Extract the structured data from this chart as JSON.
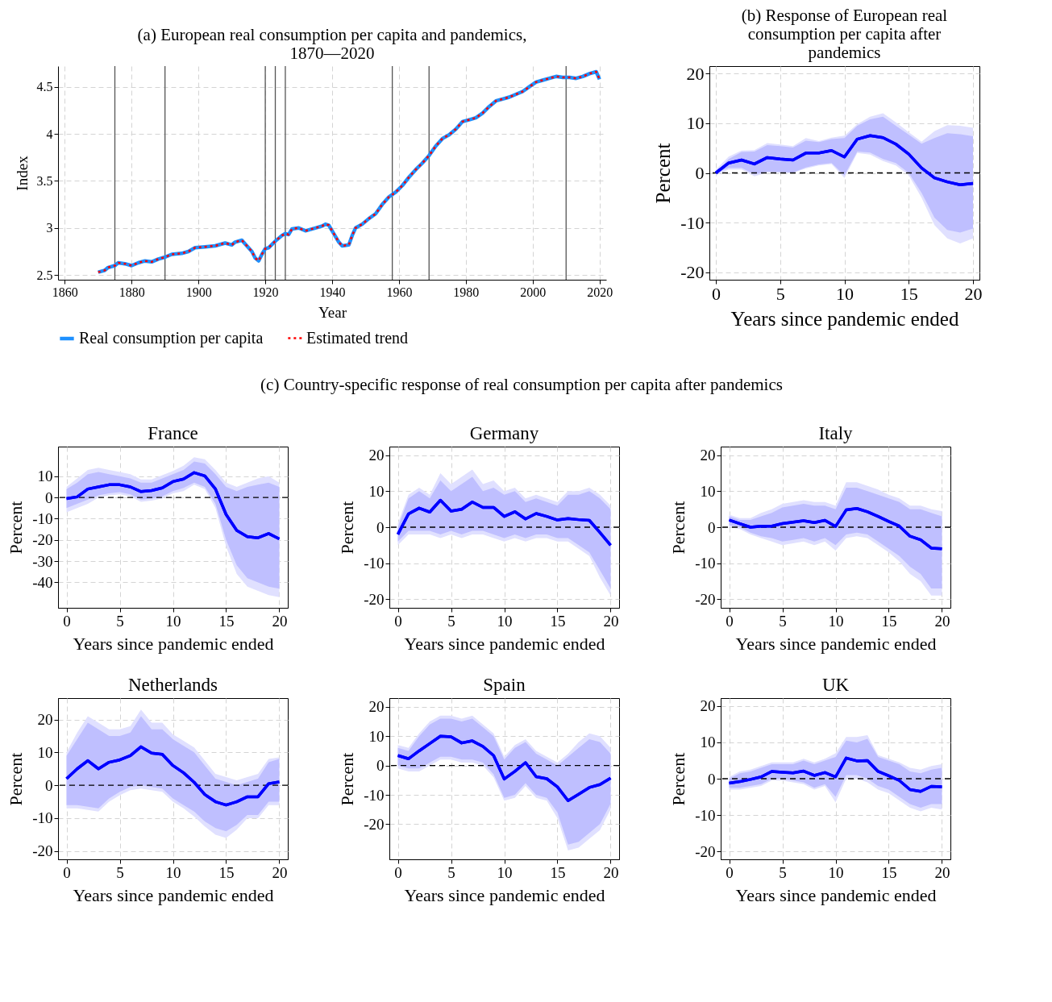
{
  "chart_data": [
    {
      "type": "line",
      "title": "(a) European real consumption per capita and pandemics, 1870—2020",
      "xlabel": "Year",
      "ylabel": "Index",
      "xlim": [
        1858,
        2022
      ],
      "xticks": [
        1860,
        1880,
        1900,
        1920,
        1940,
        1960,
        1980,
        2000,
        2020
      ],
      "ylim": [
        2.45,
        4.72
      ],
      "yticks": [
        2.5,
        3,
        3.5,
        4,
        4.5
      ],
      "grid": true,
      "legend": "bottom",
      "x": [
        1870,
        1872,
        1873,
        1875,
        1876,
        1878,
        1880,
        1882,
        1884,
        1886,
        1888,
        1890,
        1892,
        1895,
        1897,
        1899,
        1902,
        1905,
        1908,
        1910,
        1911,
        1913,
        1914,
        1916,
        1917,
        1918,
        1919,
        1920,
        1921,
        1923,
        1925,
        1926,
        1927,
        1928,
        1930,
        1932,
        1935,
        1937,
        1938,
        1939,
        1940,
        1942,
        1943,
        1945,
        1946,
        1947,
        1949,
        1951,
        1953,
        1955,
        1957,
        1959,
        1961,
        1963,
        1965,
        1967,
        1969,
        1971,
        1973,
        1975,
        1977,
        1979,
        1981,
        1983,
        1985,
        1987,
        1989,
        1991,
        1993,
        1995,
        1997,
        1999,
        2001,
        2003,
        2005,
        2007,
        2009,
        2011,
        2013,
        2015,
        2017,
        2019,
        2020
      ],
      "ref_lines": [
        {
          "axis": "x",
          "value": 1875,
          "color": "#555555"
        },
        {
          "axis": "x",
          "value": 1890,
          "color": "#555555"
        },
        {
          "axis": "x",
          "value": 1920,
          "color": "#555555"
        },
        {
          "axis": "x",
          "value": 1923,
          "color": "#555555"
        },
        {
          "axis": "x",
          "value": 1926,
          "color": "#555555"
        },
        {
          "axis": "x",
          "value": 1958,
          "color": "#555555"
        },
        {
          "axis": "x",
          "value": 1969,
          "color": "#555555"
        },
        {
          "axis": "x",
          "value": 2010,
          "color": "#555555"
        }
      ],
      "series": [
        {
          "name": "Real consumption per capita",
          "color": "#1e90ff",
          "line_style": "solid",
          "values": [
            2.53,
            2.55,
            2.58,
            2.6,
            2.63,
            2.62,
            2.6,
            2.63,
            2.65,
            2.64,
            2.67,
            2.69,
            2.72,
            2.73,
            2.75,
            2.79,
            2.8,
            2.81,
            2.84,
            2.82,
            2.85,
            2.87,
            2.83,
            2.75,
            2.68,
            2.65,
            2.72,
            2.78,
            2.79,
            2.86,
            2.92,
            2.94,
            2.93,
            2.99,
            3.0,
            2.97,
            3.0,
            3.02,
            3.04,
            3.03,
            2.97,
            2.85,
            2.81,
            2.82,
            2.92,
            3.0,
            3.04,
            3.1,
            3.15,
            3.25,
            3.33,
            3.38,
            3.45,
            3.54,
            3.62,
            3.69,
            3.77,
            3.87,
            3.95,
            3.99,
            4.05,
            4.13,
            4.15,
            4.17,
            4.22,
            4.29,
            4.35,
            4.37,
            4.39,
            4.42,
            4.45,
            4.5,
            4.55,
            4.57,
            4.59,
            4.61,
            4.6,
            4.6,
            4.59,
            4.61,
            4.64,
            4.66,
            4.58
          ]
        },
        {
          "name": "Estimated trend",
          "color": "#ff0000",
          "line_style": "dotted",
          "values": [
            2.53,
            2.55,
            2.58,
            2.6,
            2.63,
            2.62,
            2.6,
            2.63,
            2.65,
            2.64,
            2.67,
            2.69,
            2.72,
            2.73,
            2.75,
            2.79,
            2.8,
            2.81,
            2.84,
            2.82,
            2.85,
            2.87,
            2.83,
            2.75,
            2.68,
            2.65,
            2.72,
            2.78,
            2.79,
            2.86,
            2.92,
            2.94,
            2.93,
            2.99,
            3.0,
            2.97,
            3.0,
            3.02,
            3.04,
            3.03,
            2.97,
            2.85,
            2.81,
            2.82,
            2.92,
            3.0,
            3.04,
            3.1,
            3.15,
            3.25,
            3.33,
            3.38,
            3.45,
            3.54,
            3.62,
            3.69,
            3.77,
            3.87,
            3.95,
            3.99,
            4.05,
            4.13,
            4.15,
            4.17,
            4.22,
            4.29,
            4.35,
            4.37,
            4.39,
            4.42,
            4.45,
            4.5,
            4.55,
            4.57,
            4.59,
            4.61,
            4.6,
            4.6,
            4.59,
            4.61,
            4.64,
            4.66,
            4.58
          ]
        }
      ]
    },
    {
      "type": "line",
      "title": "(b) Response of European real consumption per capita after pandemics",
      "xlabel": "Years since pandemic ended",
      "ylabel": "Percent",
      "x": [
        0,
        1,
        2,
        3,
        4,
        5,
        6,
        7,
        8,
        9,
        10,
        11,
        12,
        13,
        14,
        15,
        16,
        17,
        18,
        19,
        20
      ],
      "xlim": [
        -0.5,
        20.5
      ],
      "xticks": [
        0,
        5,
        10,
        15,
        20
      ],
      "ylim": [
        -21.5,
        21.5
      ],
      "yticks": [
        -20,
        -10,
        0,
        10,
        20
      ],
      "grid": true,
      "ref_lines": [
        {
          "axis": "y",
          "value": 0,
          "line_style": "dashed",
          "color": "#000000"
        }
      ],
      "series": [
        {
          "type": "line",
          "color": "#0000ff",
          "values": [
            0,
            2,
            2.6,
            1.8,
            3.1,
            2.8,
            2.6,
            4,
            4,
            4.5,
            3.2,
            6.8,
            7.5,
            7.1,
            5.8,
            3.8,
            1,
            -1,
            -1.8,
            -2.4,
            -2.1
          ],
          "lower": [
            -0.5,
            0.7,
            0.7,
            -0.7,
            0.1,
            0,
            0,
            0.9,
            1.5,
            1.8,
            -1,
            4,
            3.7,
            2.4,
            1.5,
            -0.5,
            -5,
            -10.5,
            -13.2,
            -14.2,
            -13.2
          ],
          "upper": [
            0.7,
            3.3,
            4.5,
            4.6,
            6,
            5.7,
            5.4,
            7,
            6.4,
            7.1,
            7.5,
            9.8,
            11.3,
            12,
            10.2,
            8.2,
            6.3,
            8.4,
            9.6,
            9.5,
            9.1
          ]
        },
        {
          "type": "line",
          "color": "#0000ff",
          "values": [
            0,
            2,
            2.6,
            1.8,
            3.1,
            2.8,
            2.6,
            4,
            4,
            4.5,
            3.2,
            6.8,
            7.5,
            7.1,
            5.8,
            3.8,
            1,
            -1,
            -1.8,
            -2.4,
            -2.1
          ],
          "lower": [
            0,
            1,
            1,
            -0.3,
            0.3,
            0.2,
            0.1,
            1.1,
            1.7,
            2,
            -0.5,
            4.3,
            4.1,
            2.8,
            2,
            0,
            -4,
            -9,
            -11.5,
            -12,
            -11.2
          ],
          "upper": [
            0,
            2.8,
            4.2,
            4.3,
            5.6,
            5.4,
            5.1,
            6.5,
            6.2,
            6.8,
            7,
            9.5,
            10.8,
            11.3,
            9.5,
            7.7,
            5.9,
            7,
            8,
            7.8,
            7.4
          ]
        }
      ]
    },
    {
      "type": "other",
      "title": "(c) Country-specific response of real consumption per capita after pandemics"
    },
    {
      "type": "line",
      "title": "France",
      "xlabel": "Years since pandemic ended",
      "ylabel": "Percent",
      "x": [
        0,
        1,
        2,
        3,
        4,
        5,
        6,
        7,
        8,
        9,
        10,
        11,
        12,
        13,
        14,
        15,
        16,
        17,
        18,
        19,
        20
      ],
      "xlim": [
        -0.8,
        20.8
      ],
      "xticks": [
        0,
        5,
        10,
        15,
        20
      ],
      "ylim": [
        -52,
        24
      ],
      "yticks": [
        -40,
        -30,
        -20,
        -10,
        0,
        10
      ],
      "grid": true,
      "ref_lines": [
        {
          "axis": "y",
          "value": 0,
          "line_style": "dashed",
          "color": "#000000"
        }
      ],
      "series": [
        {
          "type": "line",
          "color": "#0000ff",
          "values": [
            -0.5,
            0.3,
            4,
            5,
            6,
            6,
            5,
            2.8,
            3.3,
            4.5,
            7.5,
            8.7,
            11.7,
            10.2,
            4,
            -8,
            -15.5,
            -18.5,
            -19,
            -17,
            -19.5
          ],
          "lower": [
            -7,
            -5,
            -3,
            0,
            1,
            1.5,
            0.5,
            -2,
            -1.5,
            -0.5,
            2,
            3,
            6,
            4,
            -5,
            -23,
            -36,
            -42,
            -44,
            -46,
            -47
          ],
          "upper": [
            5,
            9,
            13,
            14,
            13,
            12,
            11,
            8.5,
            8.5,
            10.5,
            12.5,
            15,
            19,
            18,
            13,
            7,
            5,
            7,
            9,
            10,
            7
          ]
        },
        {
          "type": "line",
          "color": "#0000ff",
          "values": [
            -0.5,
            0.3,
            4,
            5,
            6,
            6,
            5,
            2.8,
            3.3,
            4.5,
            7.5,
            8.7,
            11.7,
            10.2,
            4,
            -8,
            -15.5,
            -18.5,
            -19,
            -17,
            -19.5
          ],
          "lower": [
            -5,
            -3,
            -1,
            1,
            2,
            2.5,
            1.5,
            -1,
            -0.5,
            0.5,
            3,
            4.5,
            7,
            5,
            -3,
            -20,
            -32,
            -38,
            -40,
            -42,
            -43
          ],
          "upper": [
            4,
            7,
            11,
            12,
            11,
            10,
            9,
            7,
            7,
            9,
            11,
            13,
            17,
            16,
            11,
            5,
            3,
            5,
            6,
            7,
            5
          ]
        }
      ]
    },
    {
      "type": "line",
      "title": "Germany",
      "xlabel": "Years since pandemic ended",
      "ylabel": "Percent",
      "x": [
        0,
        1,
        2,
        3,
        4,
        5,
        6,
        7,
        8,
        9,
        10,
        11,
        12,
        13,
        14,
        15,
        16,
        17,
        18,
        19,
        20
      ],
      "xlim": [
        -0.8,
        20.8
      ],
      "xticks": [
        0,
        5,
        10,
        15,
        20
      ],
      "ylim": [
        -22.4,
        22.4
      ],
      "yticks": [
        -20,
        -10,
        0,
        10,
        20
      ],
      "grid": true,
      "ref_lines": [
        {
          "axis": "y",
          "value": 0,
          "line_style": "dashed",
          "color": "#000000"
        }
      ],
      "series": [
        {
          "type": "line",
          "color": "#0000ff",
          "values": [
            -2,
            3.7,
            5.3,
            4.2,
            7.5,
            4.5,
            5,
            7,
            5.5,
            5.5,
            3,
            4.3,
            2.3,
            3.8,
            3,
            2,
            2.4,
            2.1,
            1.9,
            -1.5,
            -5
          ],
          "lower": [
            -5,
            -2,
            -2,
            -2,
            -3,
            -2,
            -3,
            -2,
            -2,
            -3,
            -4,
            -3,
            -4,
            -3,
            -3,
            -4,
            -4,
            -6,
            -8,
            -14,
            -19
          ],
          "upper": [
            1,
            9,
            11,
            9,
            15,
            12,
            14,
            16,
            12,
            13,
            10,
            11,
            8,
            9,
            8,
            7,
            10,
            10,
            11,
            9,
            6
          ]
        },
        {
          "type": "line",
          "color": "#0000ff",
          "values": [
            -2,
            3.7,
            5.3,
            4.2,
            7.5,
            4.5,
            5,
            7,
            5.5,
            5.5,
            3,
            4.3,
            2.3,
            3.8,
            3,
            2,
            2.4,
            2.1,
            1.9,
            -1.5,
            -5
          ],
          "lower": [
            -4,
            -1,
            -1,
            -1,
            -2,
            -1,
            -2,
            -1,
            -1,
            -2,
            -3,
            -2,
            -3,
            -2,
            -2,
            -3,
            -3,
            -5,
            -7,
            -12,
            -17
          ],
          "upper": [
            0,
            8,
            10,
            8,
            13,
            10,
            12,
            14,
            10,
            11,
            9,
            10,
            7,
            8,
            7,
            6,
            9,
            9,
            10,
            8,
            5
          ]
        }
      ]
    },
    {
      "type": "line",
      "title": "Italy",
      "xlabel": "Years since pandemic ended",
      "ylabel": "Percent",
      "x": [
        0,
        1,
        2,
        3,
        4,
        5,
        6,
        7,
        8,
        9,
        10,
        11,
        12,
        13,
        14,
        15,
        16,
        17,
        18,
        19,
        20
      ],
      "xlim": [
        -0.8,
        20.8
      ],
      "xticks": [
        0,
        5,
        10,
        15,
        20
      ],
      "ylim": [
        -22.4,
        22.4
      ],
      "yticks": [
        -20,
        -10,
        0,
        10,
        20
      ],
      "grid": true,
      "ref_lines": [
        {
          "axis": "y",
          "value": 0,
          "line_style": "dashed",
          "color": "#000000"
        }
      ],
      "series": [
        {
          "type": "line",
          "color": "#0000ff",
          "values": [
            2,
            1,
            0,
            0.3,
            0.3,
            1,
            1.4,
            1.8,
            1.3,
            1.9,
            0.2,
            4.8,
            5.2,
            4.3,
            3,
            1.6,
            0.3,
            -2.5,
            -3.5,
            -5.8,
            -6
          ],
          "lower": [
            0,
            -0.5,
            -2,
            -3,
            -4,
            -5,
            -4.5,
            -4,
            -5,
            -4,
            -6.5,
            -3,
            -2.5,
            -3,
            -5,
            -7,
            -9.5,
            -13,
            -15,
            -19,
            -19
          ],
          "upper": [
            3.5,
            2.5,
            2.5,
            4,
            5,
            6.5,
            7,
            7.5,
            7,
            7,
            6,
            12.5,
            12.5,
            11.5,
            10.5,
            9,
            8,
            6,
            6,
            5,
            4.5
          ]
        },
        {
          "type": "line",
          "color": "#0000ff",
          "values": [
            2,
            1,
            0,
            0.3,
            0.3,
            1,
            1.4,
            1.8,
            1.3,
            1.9,
            0.2,
            4.8,
            5.2,
            4.3,
            3,
            1.6,
            0.3,
            -2.5,
            -3.5,
            -5.8,
            -6
          ],
          "lower": [
            0.5,
            0,
            -1.5,
            -2.5,
            -3,
            -4,
            -3.5,
            -3,
            -4,
            -3,
            -5,
            -2,
            -1.5,
            -2,
            -4,
            -6,
            -8,
            -11,
            -13,
            -17,
            -17
          ],
          "upper": [
            3,
            2,
            2,
            3,
            4,
            5.5,
            6,
            6.5,
            6,
            6,
            5,
            11,
            11,
            10,
            9,
            8,
            7,
            5,
            5,
            4,
            3
          ]
        }
      ]
    },
    {
      "type": "line",
      "title": "Netherlands",
      "xlabel": "Years since pandemic ended",
      "ylabel": "Percent",
      "x": [
        0,
        1,
        2,
        3,
        4,
        5,
        6,
        7,
        8,
        9,
        10,
        11,
        12,
        13,
        14,
        15,
        16,
        17,
        18,
        19,
        20
      ],
      "xlim": [
        -0.8,
        20.8
      ],
      "xticks": [
        0,
        5,
        10,
        15,
        20
      ],
      "ylim": [
        -22.5,
        26.5
      ],
      "yticks": [
        -20,
        -10,
        0,
        10,
        20
      ],
      "grid": true,
      "ref_lines": [
        {
          "axis": "y",
          "value": 0,
          "line_style": "dashed",
          "color": "#000000"
        }
      ],
      "series": [
        {
          "type": "line",
          "color": "#0000ff",
          "values": [
            2,
            5,
            7.5,
            5,
            7,
            7.7,
            9,
            11.7,
            9.8,
            9.4,
            6,
            3.8,
            0.9,
            -2.8,
            -5,
            -6,
            -5,
            -3.5,
            -3.5,
            0.5,
            1
          ],
          "lower": [
            -7,
            -7,
            -7.5,
            -8,
            -5,
            -3,
            -1.5,
            -1,
            -1.5,
            -2,
            -5,
            -7,
            -9.5,
            -12.5,
            -15,
            -16,
            -13.5,
            -10,
            -10,
            -6,
            -6
          ],
          "upper": [
            10,
            16,
            21,
            19,
            17,
            17,
            18,
            23,
            19,
            19,
            15.5,
            13.5,
            11.5,
            7.5,
            3.5,
            2.5,
            1.5,
            2.5,
            3.5,
            8,
            8.5
          ]
        },
        {
          "type": "line",
          "color": "#0000ff",
          "values": [
            2,
            5,
            7.5,
            5,
            7,
            7.7,
            9,
            11.7,
            9.8,
            9.4,
            6,
            3.8,
            0.9,
            -2.8,
            -5,
            -6,
            -5,
            -3.5,
            -3.5,
            0.5,
            1
          ],
          "lower": [
            -6,
            -6,
            -6.5,
            -7,
            -4,
            -2,
            -0.5,
            0,
            -0.5,
            -1,
            -4,
            -6,
            -8,
            -11,
            -13,
            -14,
            -12,
            -9,
            -9,
            -5,
            -5
          ],
          "upper": [
            9,
            14,
            19,
            17,
            15,
            15,
            16,
            21,
            17,
            17,
            14,
            12,
            10,
            6,
            2,
            1,
            0,
            1,
            2,
            7,
            8
          ]
        }
      ]
    },
    {
      "type": "line",
      "title": "Spain",
      "xlabel": "Years since pandemic ended",
      "ylabel": "Percent",
      "x": [
        0,
        1,
        2,
        3,
        4,
        5,
        6,
        7,
        8,
        9,
        10,
        11,
        12,
        13,
        14,
        15,
        16,
        17,
        18,
        19,
        20
      ],
      "xlim": [
        -0.8,
        20.8
      ],
      "xticks": [
        0,
        5,
        10,
        15,
        20
      ],
      "ylim": [
        -32,
        23
      ],
      "yticks": [
        -20,
        -10,
        0,
        10,
        20
      ],
      "grid": true,
      "ref_lines": [
        {
          "axis": "y",
          "value": 0,
          "line_style": "dashed",
          "color": "#000000"
        }
      ],
      "series": [
        {
          "type": "line",
          "color": "#0000ff",
          "values": [
            3.4,
            2.3,
            5,
            7.5,
            10,
            9.8,
            7.7,
            8.4,
            6.5,
            3.4,
            -4.6,
            -2,
            1,
            -3.8,
            -4.5,
            -7.3,
            -12,
            -9.8,
            -7.5,
            -6.5,
            -4.3
          ],
          "lower": [
            -1,
            -2,
            -2,
            0,
            2,
            2,
            1,
            1,
            0,
            -4,
            -12,
            -11,
            -7,
            -11,
            -12,
            -18,
            -29,
            -28,
            -25,
            -22,
            -15
          ],
          "upper": [
            7,
            6,
            11,
            15,
            17,
            17,
            16,
            17,
            14,
            11,
            3,
            7,
            9,
            5,
            3,
            1,
            4,
            8,
            11,
            10,
            6
          ]
        },
        {
          "type": "line",
          "color": "#0000ff",
          "values": [
            3.4,
            2.3,
            5,
            7.5,
            10,
            9.8,
            7.7,
            8.4,
            6.5,
            3.4,
            -4.6,
            -2,
            1,
            -3.8,
            -4.5,
            -7.3,
            -12,
            -9.8,
            -7.5,
            -6.5,
            -4.3
          ],
          "lower": [
            0,
            -1,
            -1,
            1,
            3,
            3,
            2,
            2,
            1,
            -3,
            -11,
            -10,
            -6,
            -10,
            -11,
            -16,
            -27,
            -26,
            -23,
            -20,
            -13
          ],
          "upper": [
            6,
            5,
            10,
            14,
            16,
            16,
            15,
            16,
            13,
            10,
            2,
            6,
            8,
            4,
            2,
            0,
            3,
            6,
            9,
            8,
            4
          ]
        }
      ]
    },
    {
      "type": "line",
      "title": "UK",
      "xlabel": "Years since pandemic ended",
      "ylabel": "Percent",
      "x": [
        0,
        1,
        2,
        3,
        4,
        5,
        6,
        7,
        8,
        9,
        10,
        11,
        12,
        13,
        14,
        15,
        16,
        17,
        18,
        19,
        20
      ],
      "xlim": [
        -0.8,
        20.8
      ],
      "xticks": [
        0,
        5,
        10,
        15,
        20
      ],
      "ylim": [
        -22.2,
        22.2
      ],
      "yticks": [
        -20,
        -10,
        0,
        10,
        20
      ],
      "grid": true,
      "ref_lines": [
        {
          "axis": "y",
          "value": 0,
          "line_style": "dashed",
          "color": "#000000"
        }
      ],
      "series": [
        {
          "type": "line",
          "color": "#0000ff",
          "values": [
            -1.2,
            -0.8,
            -0.2,
            0.5,
            2,
            1.8,
            1.6,
            2.1,
            0.9,
            1.7,
            0.5,
            5.7,
            4.9,
            5,
            2,
            0.8,
            -0.5,
            -3,
            -3.5,
            -2.1,
            -2.2
          ],
          "lower": [
            -3,
            -3,
            -2.5,
            -2,
            -0.5,
            -0.5,
            -1,
            -1.5,
            -3,
            -2,
            -6.5,
            0,
            0,
            -1,
            -3,
            -4,
            -6,
            -8,
            -9,
            -8,
            -8.5
          ],
          "upper": [
            0.5,
            2,
            2.5,
            3.5,
            4.5,
            4.5,
            4.5,
            5.5,
            4.5,
            5.5,
            7,
            11.5,
            11.5,
            12,
            6.5,
            5.5,
            4.5,
            3,
            2.5,
            3.5,
            4
          ]
        },
        {
          "type": "line",
          "color": "#0000ff",
          "values": [
            -1.2,
            -0.8,
            -0.2,
            0.5,
            2,
            1.8,
            1.6,
            2.1,
            0.9,
            1.7,
            0.5,
            5.7,
            4.9,
            5,
            2,
            0.8,
            -0.5,
            -3,
            -3.5,
            -2.1,
            -2.2
          ],
          "lower": [
            -2.5,
            -2.5,
            -2,
            -1.5,
            0,
            0,
            -0.5,
            -1,
            -2.5,
            -1.5,
            -5,
            1,
            1,
            0,
            -2,
            -3,
            -5,
            -7,
            -8,
            -7,
            -7
          ],
          "upper": [
            0,
            1.5,
            2,
            3,
            4,
            4,
            4,
            5,
            4,
            5,
            6,
            10.5,
            10,
            11,
            6,
            5,
            4,
            2,
            1.5,
            2.5,
            3
          ]
        }
      ]
    }
  ]
}
